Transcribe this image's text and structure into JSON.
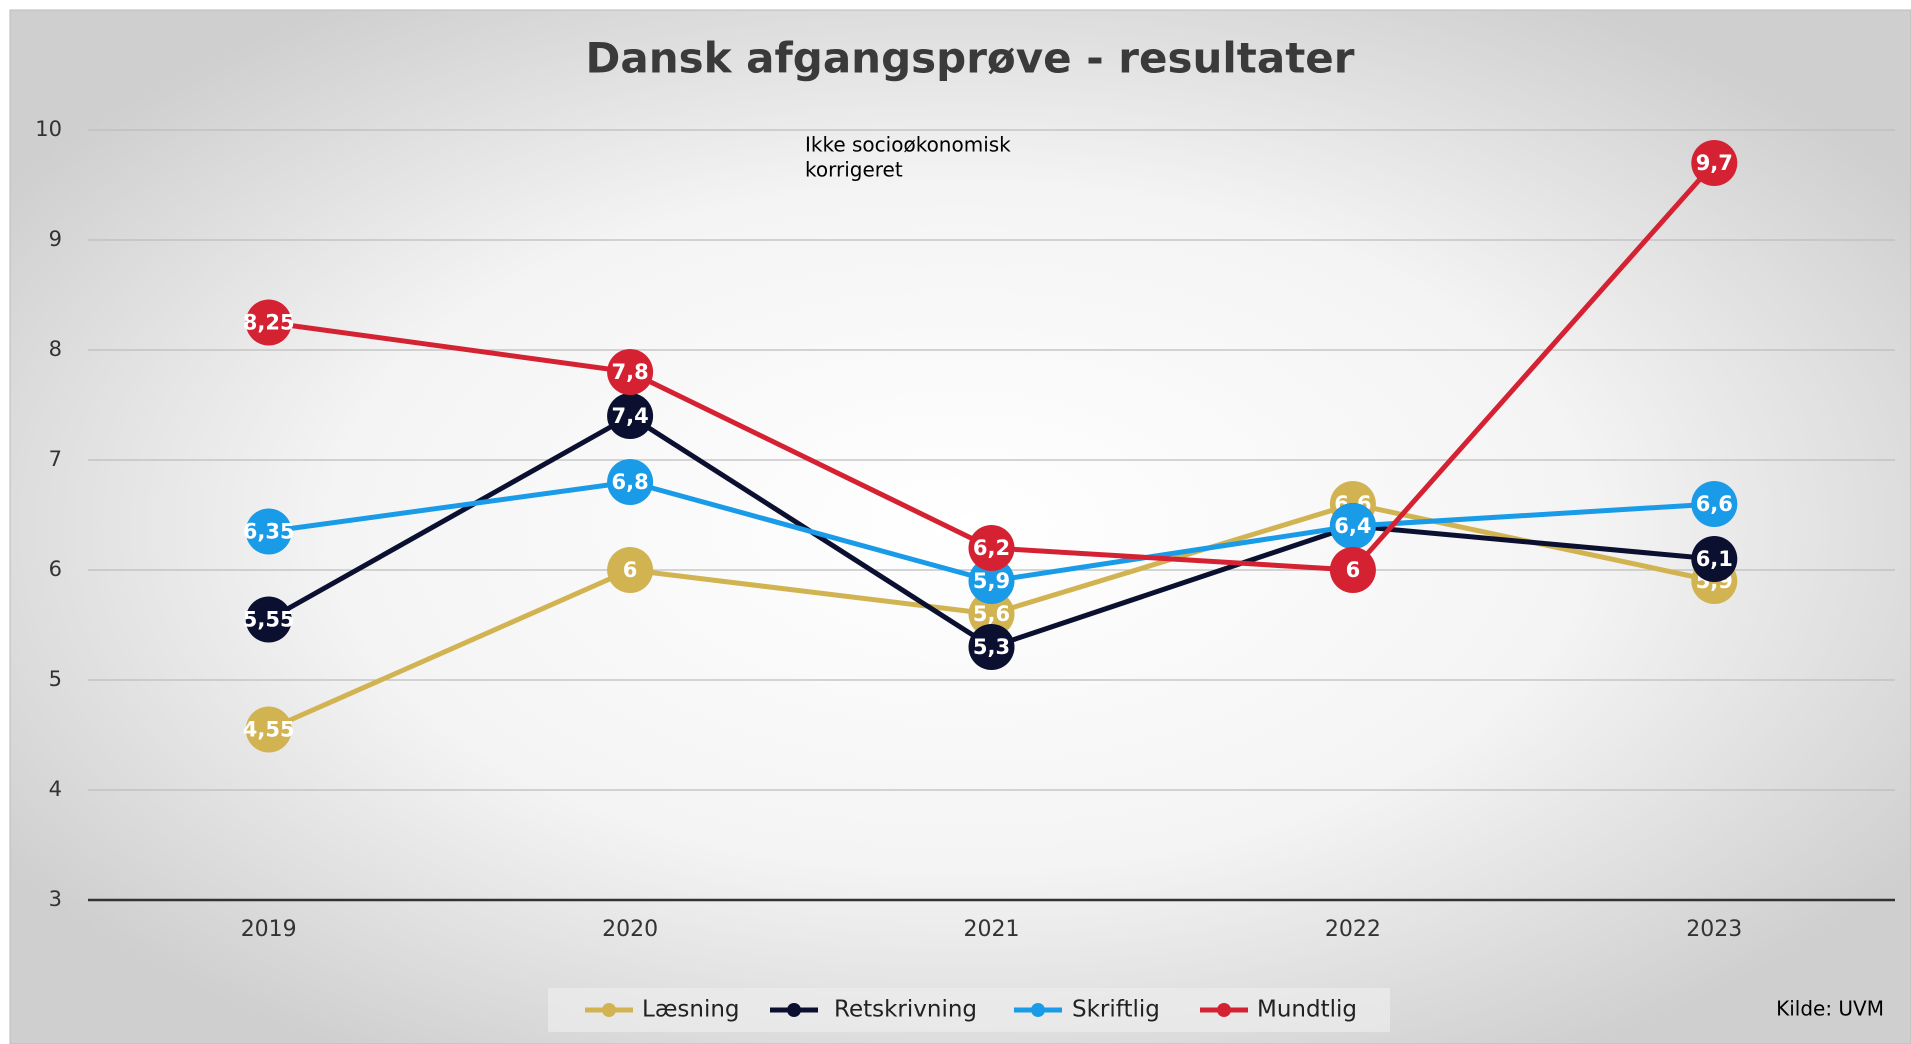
{
  "chart_data": {
    "type": "line",
    "title": "Dansk afgangsprøve - resultater",
    "annotation": [
      "Ikke socioøkonomisk",
      "korrigeret"
    ],
    "source": "Kilde: UVM",
    "categories": [
      "2019",
      "2020",
      "2021",
      "2022",
      "2023"
    ],
    "series": [
      {
        "name": "Læsning",
        "color": "#d1b352",
        "values": [
          4.55,
          6,
          5.6,
          6.6,
          5.9
        ],
        "value_labels": [
          "4,55",
          "6",
          "5,6",
          "6,6",
          "5,9"
        ]
      },
      {
        "name": "Retskrivning",
        "color": "#0b1030",
        "values": [
          5.55,
          7.4,
          5.3,
          6.4,
          6.1
        ],
        "value_labels": [
          "5,55",
          "7,4",
          "5,3",
          "6,4",
          "6,1"
        ]
      },
      {
        "name": "Skriftlig",
        "color": "#1a9be8",
        "values": [
          6.35,
          6.8,
          5.9,
          6.4,
          6.6
        ],
        "value_labels": [
          "6,35",
          "6,8",
          "5,9",
          "6,4",
          "6,6"
        ]
      },
      {
        "name": "Mundtlig",
        "color": "#d42233",
        "values": [
          8.25,
          7.8,
          6.2,
          6,
          9.7
        ],
        "value_labels": [
          "8,25",
          "7,8",
          "6,2",
          "6",
          "9,7"
        ]
      }
    ],
    "ylim": [
      3,
      10
    ],
    "yticks": [
      3,
      4,
      5,
      6,
      7,
      8,
      9,
      10
    ],
    "grid": true,
    "legend": "bottom"
  }
}
